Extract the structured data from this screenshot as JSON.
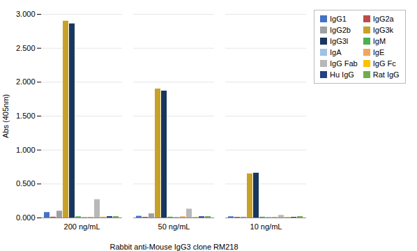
{
  "chart_data": {
    "type": "bar",
    "categories": [
      "200 ng/mL",
      "50 ng/mL",
      "10 ng/mL"
    ],
    "series": [
      {
        "name": "IgG1",
        "color": "#4472C4",
        "values": [
          0.08,
          0.025,
          0.018
        ]
      },
      {
        "name": "IgG2a",
        "color": "#BE4B48",
        "values": [
          0.012,
          0.01,
          0.01
        ]
      },
      {
        "name": "IgG2b",
        "color": "#9FA0A0",
        "values": [
          0.1,
          0.062,
          0.012
        ]
      },
      {
        "name": "IgG3k",
        "color": "#C8A228",
        "values": [
          2.9,
          1.9,
          0.65
        ]
      },
      {
        "name": "IgG3l",
        "color": "#17375E",
        "values": [
          2.86,
          1.87,
          0.66
        ]
      },
      {
        "name": "IgM",
        "color": "#4CAF50",
        "values": [
          0.018,
          0.012,
          0.012
        ]
      },
      {
        "name": "IgA",
        "color": "#9DC3E6",
        "values": [
          0.01,
          0.01,
          0.01
        ]
      },
      {
        "name": "IgE",
        "color": "#F4A55A",
        "values": [
          0.01,
          0.018,
          0.01
        ]
      },
      {
        "name": "IgG Fab",
        "color": "#B8B8B8",
        "values": [
          0.27,
          0.13,
          0.038
        ]
      },
      {
        "name": "IgG Fc",
        "color": "#FFC000",
        "values": [
          0.012,
          0.01,
          0.01
        ]
      },
      {
        "name": "Hu IgG",
        "color": "#244185",
        "values": [
          0.02,
          0.018,
          0.01
        ]
      },
      {
        "name": "Rat IgG",
        "color": "#70AD47",
        "values": [
          0.02,
          0.02,
          0.02
        ]
      }
    ],
    "xlabel": "Rabbit anti-Mouse IgG3 clone RM218",
    "ylabel": "Abs (405nm)",
    "ylim": [
      0.0,
      3.0
    ],
    "yticks": [
      {
        "value": 0.0,
        "label": "0.000"
      },
      {
        "value": 0.5,
        "label": "0.500"
      },
      {
        "value": 1.0,
        "label": "1.000"
      },
      {
        "value": 1.5,
        "label": "1.500"
      },
      {
        "value": 2.0,
        "label": "2.000"
      },
      {
        "value": 2.5,
        "label": "2.500"
      },
      {
        "value": 3.0,
        "label": "3.000"
      }
    ],
    "grid": true,
    "legend": "right"
  }
}
